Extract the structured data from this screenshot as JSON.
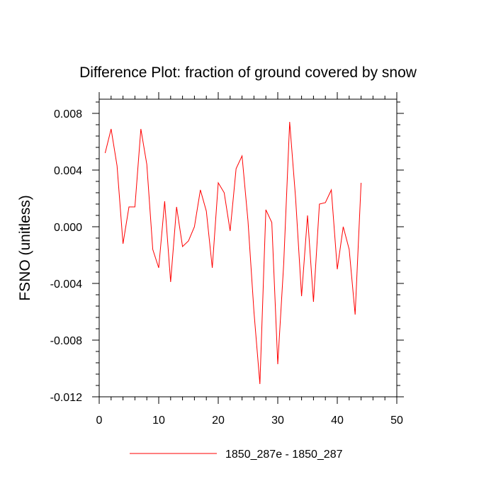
{
  "chart_data": {
    "type": "line",
    "title": "Difference Plot: fraction of ground covered by snow",
    "xlabel": "",
    "ylabel": "FSNO  (unitless)",
    "xlim": [
      0,
      50
    ],
    "ylim": [
      -0.012,
      0.009
    ],
    "x_ticks": [
      "0",
      "10",
      "20",
      "30",
      "40",
      "50"
    ],
    "y_ticks": [
      "-0.012",
      "-0.008",
      "-0.004",
      "0.000",
      "0.004",
      "0.008"
    ],
    "grid": false,
    "legend_position": "bottom",
    "series": [
      {
        "name": "1850_287e - 1850_287",
        "color": "#ff0000",
        "x": [
          1,
          2,
          3,
          4,
          5,
          6,
          7,
          8,
          9,
          10,
          11,
          12,
          13,
          14,
          15,
          16,
          17,
          18,
          19,
          20,
          21,
          22,
          23,
          24,
          25,
          26,
          27,
          28,
          29,
          30,
          31,
          32,
          33,
          34,
          35,
          36,
          37,
          38,
          39,
          40,
          41,
          42,
          43,
          44
        ],
        "values": [
          0.0052,
          0.0069,
          0.0043,
          -0.0012,
          0.0014,
          0.0014,
          0.0069,
          0.0044,
          -0.0016,
          -0.0029,
          0.0018,
          -0.0039,
          0.0014,
          -0.0014,
          -0.001,
          0.0,
          0.0026,
          0.0011,
          -0.0029,
          0.0031,
          0.0024,
          -0.0003,
          0.0041,
          0.005,
          0.0004,
          -0.006,
          -0.0111,
          0.0012,
          0.0003,
          -0.0097,
          -0.0026,
          0.0074,
          0.002,
          -0.0049,
          0.0008,
          -0.0053,
          0.0016,
          0.0017,
          0.0026,
          -0.003,
          0.0,
          -0.0016,
          -0.0062,
          0.0031
        ]
      }
    ]
  }
}
